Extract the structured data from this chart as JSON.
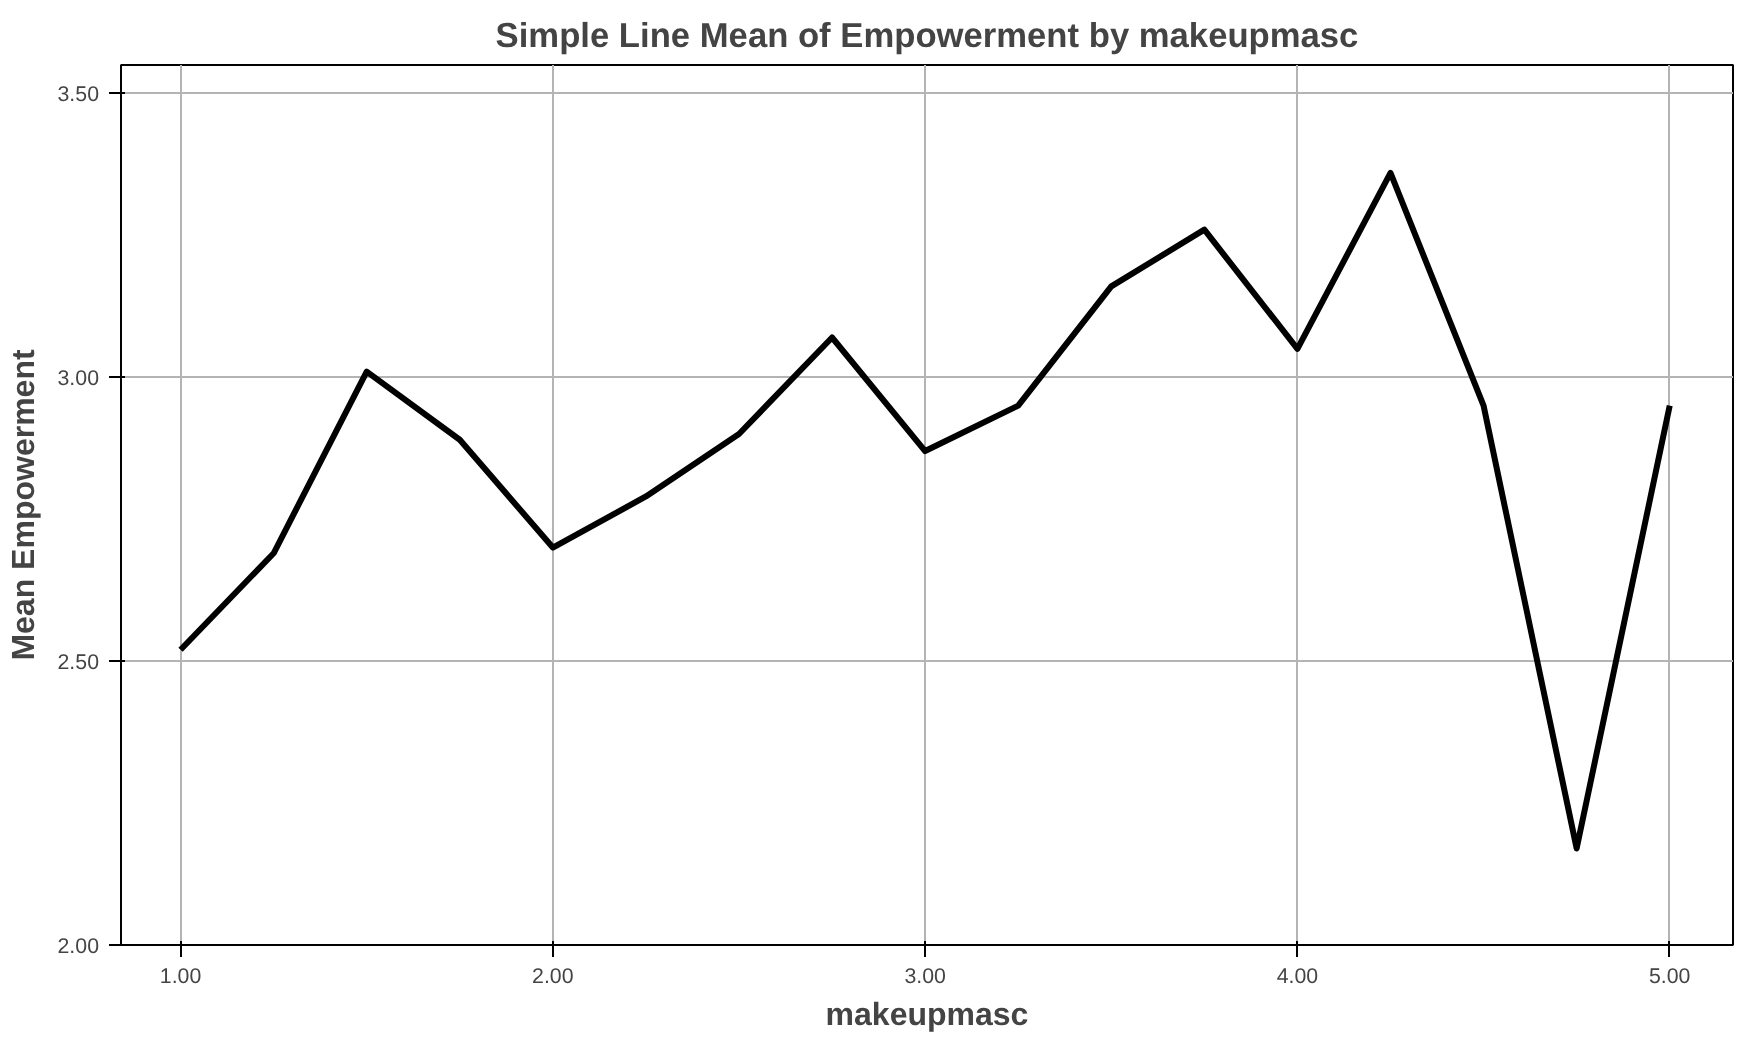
{
  "chart_data": {
    "type": "line",
    "title": "Simple Line Mean of Empowerment by makeupmasc",
    "xlabel": "makeupmasc",
    "ylabel": "Mean Empowerment",
    "x": [
      1.0,
      1.25,
      1.5,
      1.75,
      2.0,
      2.25,
      2.5,
      2.75,
      3.0,
      3.25,
      3.5,
      3.75,
      4.0,
      4.25,
      4.5,
      4.75,
      5.0
    ],
    "series": [
      {
        "color": "#000000",
        "values": [
          2.52,
          2.69,
          3.01,
          2.89,
          2.7,
          2.79,
          2.9,
          3.07,
          2.87,
          2.95,
          3.16,
          3.26,
          3.05,
          3.36,
          2.95,
          2.17,
          2.95
        ]
      }
    ],
    "xlim": [
      0.84,
      5.17
    ],
    "ylim": [
      2.0,
      3.55
    ],
    "xticks": [
      {
        "value": 1,
        "label": "1.00"
      },
      {
        "value": 2,
        "label": "2.00"
      },
      {
        "value": 3,
        "label": "3.00"
      },
      {
        "value": 4,
        "label": "4.00"
      },
      {
        "value": 5,
        "label": "5.00"
      }
    ],
    "yticks": [
      {
        "value": 2,
        "label": "2.00"
      },
      {
        "value": 2.5,
        "label": "2.50"
      },
      {
        "value": 3,
        "label": "3.00"
      },
      {
        "value": 3.5,
        "label": "3.50"
      }
    ],
    "grid": true,
    "marker": "none",
    "line_style": "solid"
  }
}
